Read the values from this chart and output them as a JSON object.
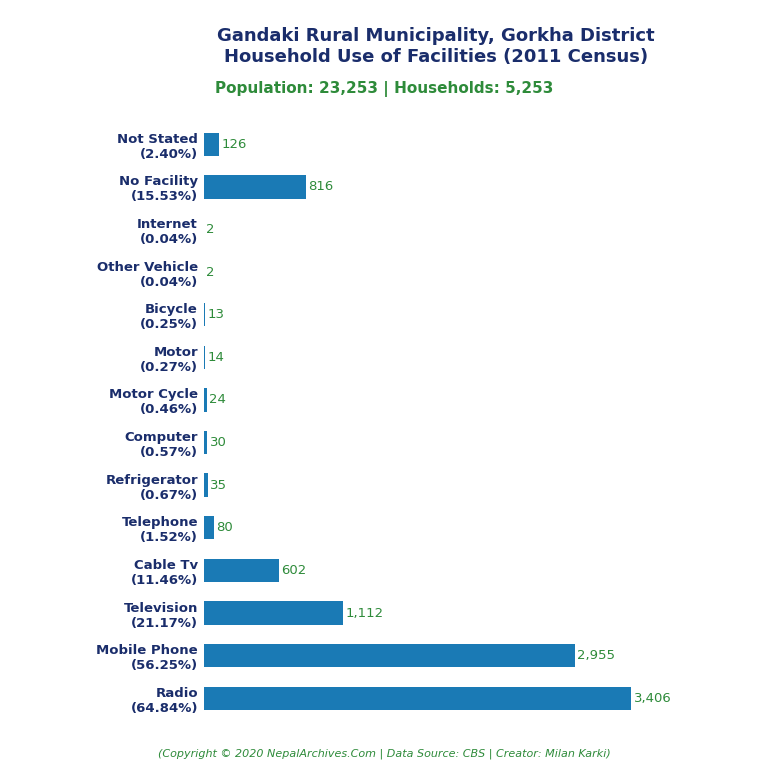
{
  "title_line1": "Gandaki Rural Municipality, Gorkha District",
  "title_line2": "Household Use of Facilities (2011 Census)",
  "subtitle": "Population: 23,253 | Households: 5,253",
  "copyright": "(Copyright © 2020 NepalArchives.Com | Data Source: CBS | Creator: Milan Karki)",
  "categories": [
    "Not Stated\n(2.40%)",
    "No Facility\n(15.53%)",
    "Internet\n(0.04%)",
    "Other Vehicle\n(0.04%)",
    "Bicycle\n(0.25%)",
    "Motor\n(0.27%)",
    "Motor Cycle\n(0.46%)",
    "Computer\n(0.57%)",
    "Refrigerator\n(0.67%)",
    "Telephone\n(1.52%)",
    "Cable Tv\n(11.46%)",
    "Television\n(21.17%)",
    "Mobile Phone\n(56.25%)",
    "Radio\n(64.84%)"
  ],
  "values": [
    126,
    816,
    2,
    2,
    13,
    14,
    24,
    30,
    35,
    80,
    602,
    1112,
    2955,
    3406
  ],
  "bar_color": "#1a7ab5",
  "title_color": "#1a2d6b",
  "subtitle_color": "#2e8b3a",
  "value_color": "#2e8b3a",
  "ylabel_color": "#1a2d6b",
  "copyright_color": "#2e8b3a",
  "background_color": "#ffffff",
  "xlim": [
    0,
    3700
  ],
  "title_fontsize": 13,
  "subtitle_fontsize": 11,
  "label_fontsize": 9.5,
  "value_fontsize": 9.5
}
